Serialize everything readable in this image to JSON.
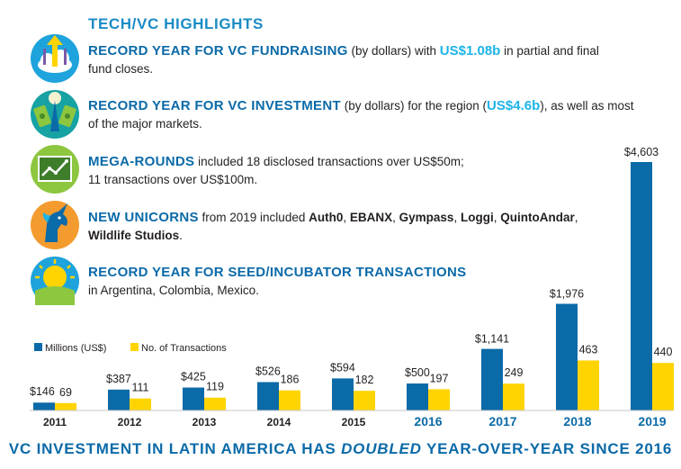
{
  "heading": "TECH/VC HIGHLIGHTS",
  "highlights": [
    {
      "title": "RECORD YEAR FOR VC FUNDRAISING",
      "pre": " (by dollars) with ",
      "value": "US$1.08b",
      "post": " in partial and final",
      "line2": "fund closes."
    },
    {
      "title": "RECORD YEAR FOR VC INVESTMENT",
      "pre": " (by dollars) for the region (",
      "value": "US$4.6b",
      "post": "), as well as most",
      "line2": "of the major markets."
    },
    {
      "title": "MEGA-ROUNDS",
      "text": " included 18 disclosed transactions over US$50m;",
      "line2": "11 transactions over US$100m."
    },
    {
      "title": "NEW UNICORNS",
      "text": " from 2019 included ",
      "companies": [
        "Auth0",
        "EBANX",
        "Gympass",
        "Loggi",
        "QuintoAndar",
        "Wildlife Studios"
      ],
      "sep": ", ",
      "end": "."
    },
    {
      "title": "RECORD YEAR FOR SEED/INCUBATOR TRANSACTIONS",
      "line2": "in Argentina, Colombia, Mexico."
    }
  ],
  "icons": [
    "fundraising-icon",
    "investment-icon",
    "mega-rounds-icon",
    "unicorn-icon",
    "seed-icon"
  ],
  "colors": {
    "blue": "#0b6aa8",
    "light_blue": "#1cb4e8",
    "yellow": "#ffd400",
    "axis": "#c8c8c8"
  },
  "chart_data": {
    "type": "bar",
    "categories": [
      "2011",
      "2012",
      "2013",
      "2014",
      "2015",
      "2016",
      "2017",
      "2018",
      "2019"
    ],
    "highlighted_categories": [
      "2016",
      "2017",
      "2018",
      "2019"
    ],
    "series": [
      {
        "name": "Millions (US$)",
        "values": [
          146,
          387,
          425,
          526,
          594,
          500,
          1141,
          1976,
          4603
        ],
        "labels": [
          "$146",
          "$387",
          "$425",
          "$526",
          "$594",
          "$500",
          "$1,141",
          "$1,976",
          "$4,603"
        ],
        "color": "#0b6aa8"
      },
      {
        "name": "No. of Transactions",
        "values": [
          69,
          111,
          119,
          186,
          182,
          197,
          249,
          463,
          440
        ],
        "labels": [
          "69",
          "111",
          "119",
          "186",
          "182",
          "197",
          "249",
          "463",
          "440"
        ],
        "color": "#ffd400"
      }
    ],
    "legend_position": "top-left",
    "title": "",
    "xlabel": "",
    "ylabel": ""
  },
  "bottom_text": {
    "pre": "VC INVESTMENT IN LATIN AMERICA HAS ",
    "emph": "DOUBLED",
    "post": " YEAR-OVER-YEAR SINCE 2016"
  }
}
